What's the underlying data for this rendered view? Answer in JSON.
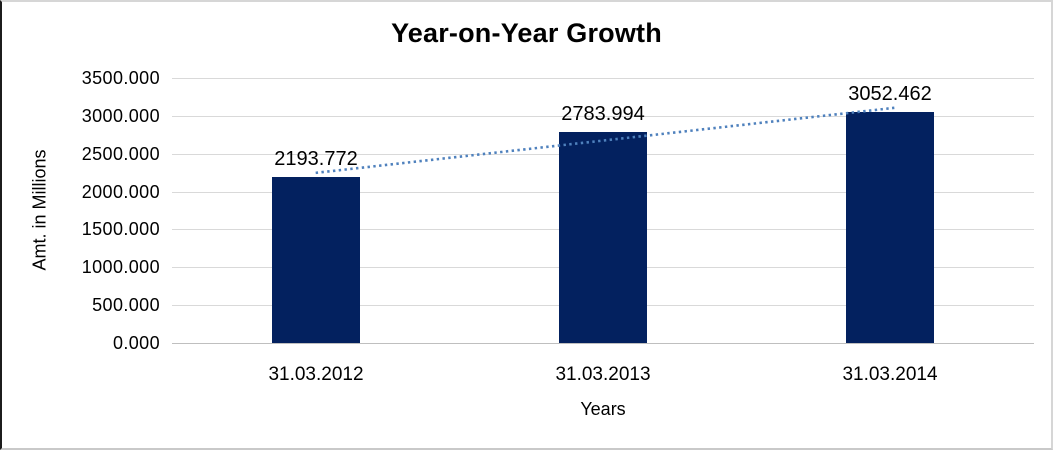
{
  "chart_data": {
    "type": "bar",
    "title": "Year-on-Year Growth",
    "xlabel": "Years",
    "ylabel": "Amt. in Millions",
    "categories": [
      "31.03.2012",
      "31.03.2013",
      "31.03.2014"
    ],
    "values": [
      2193.772,
      2783.994,
      3052.462
    ],
    "value_labels": [
      "2193.772",
      "2783.994",
      "3052.462"
    ],
    "ylim": [
      0,
      3500
    ],
    "ytick_step": 500,
    "ytick_labels": [
      "0.000",
      "500.000",
      "1000.000",
      "1500.000",
      "2000.000",
      "2500.000",
      "3000.000",
      "3500.000"
    ],
    "grid": true,
    "legend": "none",
    "trendline": {
      "type": "linear",
      "style": "dotted",
      "start_value": 2247,
      "end_value": 3106
    },
    "colors": {
      "bar": "#03215F",
      "trendline": "#4F81BD",
      "gridline": "#D9D9D9",
      "baseline": "#BFBFBF",
      "text": "#000000"
    }
  }
}
